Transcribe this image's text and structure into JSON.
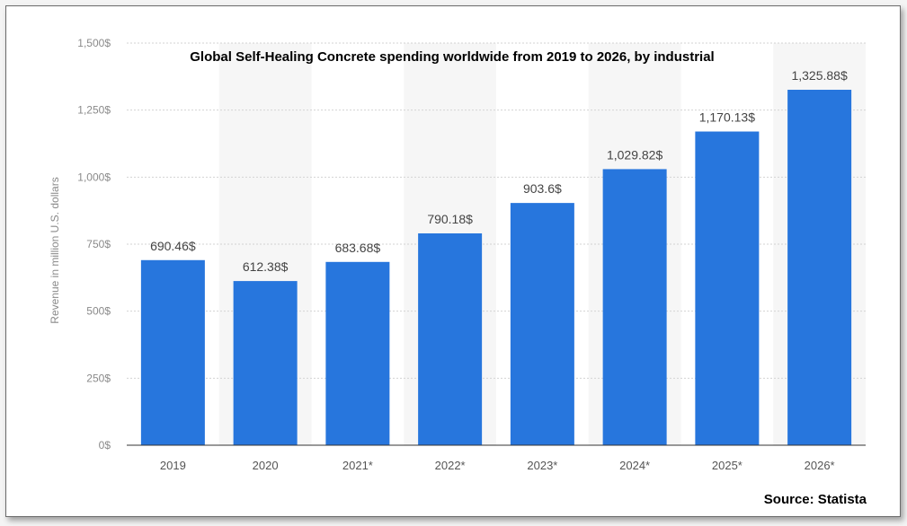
{
  "chart_data": {
    "type": "bar",
    "title": "Global Self-Healing Concrete spending worldwide from 2019 to 2026, by industrial",
    "ylabel": "Revenue in million U.S. dollars",
    "xlabel": "",
    "categories": [
      "2019",
      "2020",
      "2021*",
      "2022*",
      "2023*",
      "2024*",
      "2025*",
      "2026*"
    ],
    "values": [
      690.46,
      612.38,
      683.68,
      790.18,
      903.6,
      1029.82,
      1170.13,
      1325.88
    ],
    "value_labels": [
      "690.46$",
      "612.38$",
      "683.68$",
      "790.18$",
      "903.6$",
      "1,029.82$",
      "1,170.13$",
      "1,325.88$"
    ],
    "yticks": [
      0,
      250,
      500,
      750,
      1000,
      1250,
      1500
    ],
    "ytick_labels": [
      "0$",
      "250$",
      "500$",
      "750$",
      "1,000$",
      "1,250$",
      "1,500$"
    ],
    "ylim": [
      0,
      1500
    ],
    "grid": true,
    "bar_color": "#2776dd",
    "source": "Source: Statista"
  }
}
